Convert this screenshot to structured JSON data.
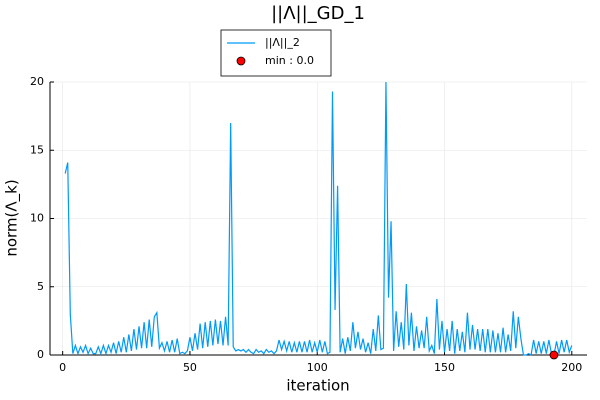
{
  "chart_data": {
    "type": "line",
    "title": "||Λ||_GD_1",
    "x_label": "iteration",
    "y_label": "norm(Λ_k)",
    "xlim": [
      -4.97,
      205.97
    ],
    "ylim": [
      0,
      20
    ],
    "xticks": [
      0,
      50,
      100,
      150,
      200
    ],
    "yticks": [
      0,
      5,
      10,
      15,
      20
    ],
    "grid": true,
    "legend": "top",
    "series": [
      {
        "name": "||Λ||_2",
        "type": "line",
        "color": "#009af9",
        "x": [
          1,
          2,
          3,
          4,
          5,
          6,
          7,
          8,
          9,
          10,
          11,
          12,
          13,
          14,
          15,
          16,
          17,
          18,
          19,
          20,
          21,
          22,
          23,
          24,
          25,
          26,
          27,
          28,
          29,
          30,
          31,
          32,
          33,
          34,
          35,
          36,
          37,
          38,
          39,
          40,
          41,
          42,
          43,
          44,
          45,
          46,
          47,
          48,
          49,
          50,
          51,
          52,
          53,
          54,
          55,
          56,
          57,
          58,
          59,
          60,
          61,
          62,
          63,
          64,
          65,
          66,
          67,
          68,
          69,
          70,
          71,
          72,
          73,
          74,
          75,
          76,
          77,
          78,
          79,
          80,
          81,
          82,
          83,
          84,
          85,
          86,
          87,
          88,
          89,
          90,
          91,
          92,
          93,
          94,
          95,
          96,
          97,
          98,
          99,
          100,
          101,
          102,
          103,
          104,
          105,
          106,
          107,
          108,
          109,
          110,
          111,
          112,
          113,
          114,
          115,
          116,
          117,
          118,
          119,
          120,
          121,
          122,
          123,
          124,
          125,
          126,
          127,
          128,
          129,
          130,
          131,
          132,
          133,
          134,
          135,
          136,
          137,
          138,
          139,
          140,
          141,
          142,
          143,
          144,
          145,
          146,
          147,
          148,
          149,
          150,
          151,
          152,
          153,
          154,
          155,
          156,
          157,
          158,
          159,
          160,
          161,
          162,
          163,
          164,
          165,
          166,
          167,
          168,
          169,
          170,
          171,
          172,
          173,
          174,
          175,
          176,
          177,
          178,
          179,
          180,
          181,
          182,
          183,
          184,
          185,
          186,
          187,
          188,
          189,
          190,
          191,
          192,
          193,
          194,
          195,
          196,
          197,
          198,
          199,
          200
        ],
        "values": [
          13.3,
          14.1,
          3,
          0.1,
          0.7,
          0.1,
          0.6,
          0.2,
          0.7,
          0.1,
          0.5,
          0.1,
          0.1,
          0.6,
          0.1,
          0.7,
          0.1,
          0.7,
          0.2,
          0.9,
          0.1,
          1.0,
          0.2,
          1.3,
          0.2,
          1.5,
          0.3,
          1.9,
          0.4,
          2.1,
          0.5,
          2.4,
          0.5,
          2.6,
          0.6,
          2.8,
          3.1,
          0.5,
          0.9,
          0.3,
          1.0,
          0.2,
          1.1,
          0.2,
          1.2,
          0.1,
          0.2,
          0.1,
          0.3,
          1.3,
          0.3,
          1.6,
          0.4,
          2.3,
          0.5,
          2.4,
          0.6,
          2.5,
          0.7,
          2.6,
          0.8,
          2.5,
          0.7,
          2.8,
          0.7,
          17.0,
          0.6,
          0.3,
          0.4,
          0.3,
          0.4,
          0.2,
          0.4,
          0.2,
          0.1,
          0.4,
          0.2,
          0.3,
          0.1,
          0.4,
          0.2,
          0.3,
          0.1,
          0.3,
          1.1,
          0.4,
          1.0,
          0.3,
          1.0,
          0.2,
          0.9,
          0.2,
          1.0,
          0.2,
          1.0,
          0.2,
          1.1,
          0.2,
          0.9,
          0.2,
          1.1,
          0.2,
          1.0,
          0.1,
          0.2,
          19.3,
          3.3,
          12.4,
          0.2,
          1.2,
          0.1,
          1.3,
          0.3,
          2.4,
          0.5,
          1.7,
          0.4,
          1.2,
          0.2,
          0.9,
          0.1,
          1.9,
          0.3,
          2.9,
          0.4,
          0.5,
          20.0,
          4.2,
          9.8,
          0.3,
          3.2,
          0.6,
          2.4,
          0.4,
          5.2,
          0.7,
          3.1,
          0.3,
          2.1,
          0.5,
          1.8,
          0.5,
          2.8,
          0.3,
          0.7,
          0.1,
          4.1,
          0.4,
          2.5,
          0.2,
          1.9,
          0.3,
          2.5,
          0.1,
          1.9,
          0.3,
          1.7,
          0.2,
          3.1,
          0.4,
          2.2,
          0.4,
          1.9,
          0.3,
          1.9,
          0.2,
          1.9,
          0.2,
          1.8,
          0.2,
          1.6,
          0.2,
          2.0,
          0.2,
          1.5,
          0.3,
          3.2,
          0.5,
          2.8,
          1.2,
          0.0,
          0.0,
          0.1,
          0.0,
          1.1,
          0.1,
          1.0,
          0.1,
          1.0,
          0.1,
          1.1,
          0.1,
          0.0,
          1.0,
          0.1,
          1.1,
          0.2,
          1.1,
          0.2,
          0.7
        ]
      },
      {
        "name": "min : 0.0",
        "type": "scatter",
        "color": "#ff0000",
        "x": [
          193
        ],
        "values": [
          0.0
        ]
      }
    ]
  }
}
